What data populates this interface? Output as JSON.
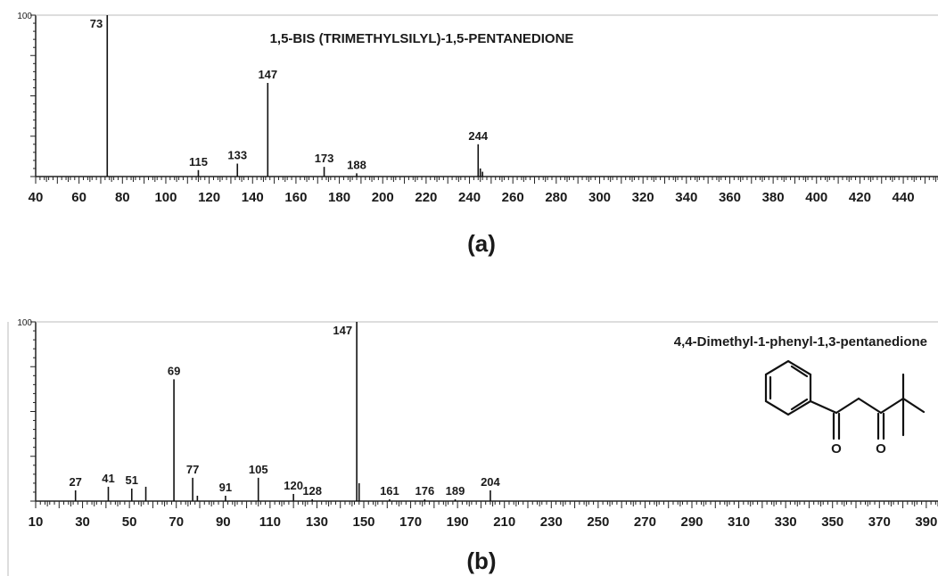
{
  "chart_data": [
    {
      "type": "bar",
      "panel_label": "(a)",
      "title": "1,5-BIS (TRIMETHYLSILYL)-1,5-PENTANEDIONE",
      "xlabel": "",
      "ylabel": "",
      "y_top_label": "100",
      "xlim": [
        40,
        456
      ],
      "ylim": [
        0,
        100
      ],
      "x_ticks": [
        40,
        60,
        80,
        100,
        120,
        140,
        160,
        180,
        200,
        220,
        240,
        260,
        280,
        300,
        320,
        340,
        360,
        380,
        400,
        420,
        440
      ],
      "peaks": [
        {
          "mz": 73,
          "intensity": 100,
          "label": "73"
        },
        {
          "mz": 115,
          "intensity": 4,
          "label": "115"
        },
        {
          "mz": 133,
          "intensity": 8,
          "label": "133"
        },
        {
          "mz": 147,
          "intensity": 58,
          "label": "147"
        },
        {
          "mz": 173,
          "intensity": 6,
          "label": "173"
        },
        {
          "mz": 188,
          "intensity": 2,
          "label": "188"
        },
        {
          "mz": 244,
          "intensity": 20,
          "label": "244"
        },
        {
          "mz": 245,
          "intensity": 5,
          "label": ""
        },
        {
          "mz": 246,
          "intensity": 3,
          "label": ""
        }
      ]
    },
    {
      "type": "bar",
      "panel_label": "(b)",
      "title": "4,4-Dimethyl-1-phenyl-1,3-pentanedione",
      "xlabel": "",
      "ylabel": "",
      "y_top_label": "100",
      "xlim": [
        10,
        395
      ],
      "ylim": [
        0,
        100
      ],
      "x_ticks": [
        10,
        30,
        50,
        70,
        90,
        110,
        130,
        150,
        170,
        190,
        210,
        230,
        250,
        270,
        290,
        310,
        330,
        350,
        370,
        390
      ],
      "peaks": [
        {
          "mz": 27,
          "intensity": 6,
          "label": "27"
        },
        {
          "mz": 41,
          "intensity": 8,
          "label": "41"
        },
        {
          "mz": 51,
          "intensity": 7,
          "label": "51"
        },
        {
          "mz": 57,
          "intensity": 8,
          "label": ""
        },
        {
          "mz": 69,
          "intensity": 68,
          "label": "69"
        },
        {
          "mz": 77,
          "intensity": 13,
          "label": "77"
        },
        {
          "mz": 79,
          "intensity": 3,
          "label": ""
        },
        {
          "mz": 91,
          "intensity": 3,
          "label": "91"
        },
        {
          "mz": 105,
          "intensity": 13,
          "label": "105"
        },
        {
          "mz": 120,
          "intensity": 4,
          "label": "120"
        },
        {
          "mz": 128,
          "intensity": 1,
          "label": "128"
        },
        {
          "mz": 147,
          "intensity": 100,
          "label": "147"
        },
        {
          "mz": 148,
          "intensity": 10,
          "label": ""
        },
        {
          "mz": 161,
          "intensity": 1,
          "label": "161"
        },
        {
          "mz": 176,
          "intensity": 1,
          "label": "176"
        },
        {
          "mz": 189,
          "intensity": 1,
          "label": "189"
        },
        {
          "mz": 204,
          "intensity": 6,
          "label": "204"
        }
      ],
      "structure_atom_labels": [
        "O",
        "O"
      ]
    }
  ]
}
